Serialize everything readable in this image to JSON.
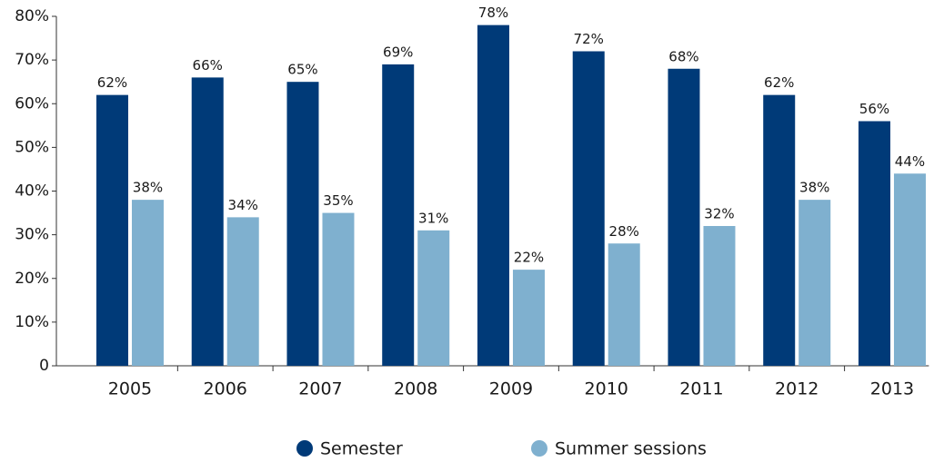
{
  "chart_data": {
    "type": "bar",
    "categories": [
      "2005",
      "2006",
      "2007",
      "2008",
      "2009",
      "2010",
      "2011",
      "2012",
      "2013"
    ],
    "series": [
      {
        "name": "Semester",
        "color": "#003a78",
        "values": [
          62,
          66,
          65,
          69,
          78,
          72,
          68,
          62,
          56
        ],
        "value_labels": [
          "62%",
          "66%",
          "65%",
          "69%",
          "78%",
          "72%",
          "68%",
          "62%",
          "56%"
        ]
      },
      {
        "name": "Summer sessions",
        "color": "#7fb0cf",
        "values": [
          38,
          34,
          35,
          31,
          22,
          28,
          32,
          38,
          44
        ],
        "value_labels": [
          "38%",
          "34%",
          "35%",
          "31%",
          "22%",
          "28%",
          "32%",
          "38%",
          "44%"
        ]
      }
    ],
    "ylim": [
      0,
      80
    ],
    "yticks": [
      0,
      {
        "value": 10,
        "label": "10%"
      },
      {
        "value": 20,
        "label": "20%"
      },
      {
        "value": 30,
        "label": "30%"
      },
      {
        "value": 40,
        "label": "40%"
      },
      {
        "value": 50,
        "label": "50%"
      },
      {
        "value": 60,
        "label": "60%"
      },
      {
        "value": 70,
        "label": "70%"
      },
      {
        "value": 80,
        "label": "80%"
      }
    ],
    "legend": "bottom"
  }
}
